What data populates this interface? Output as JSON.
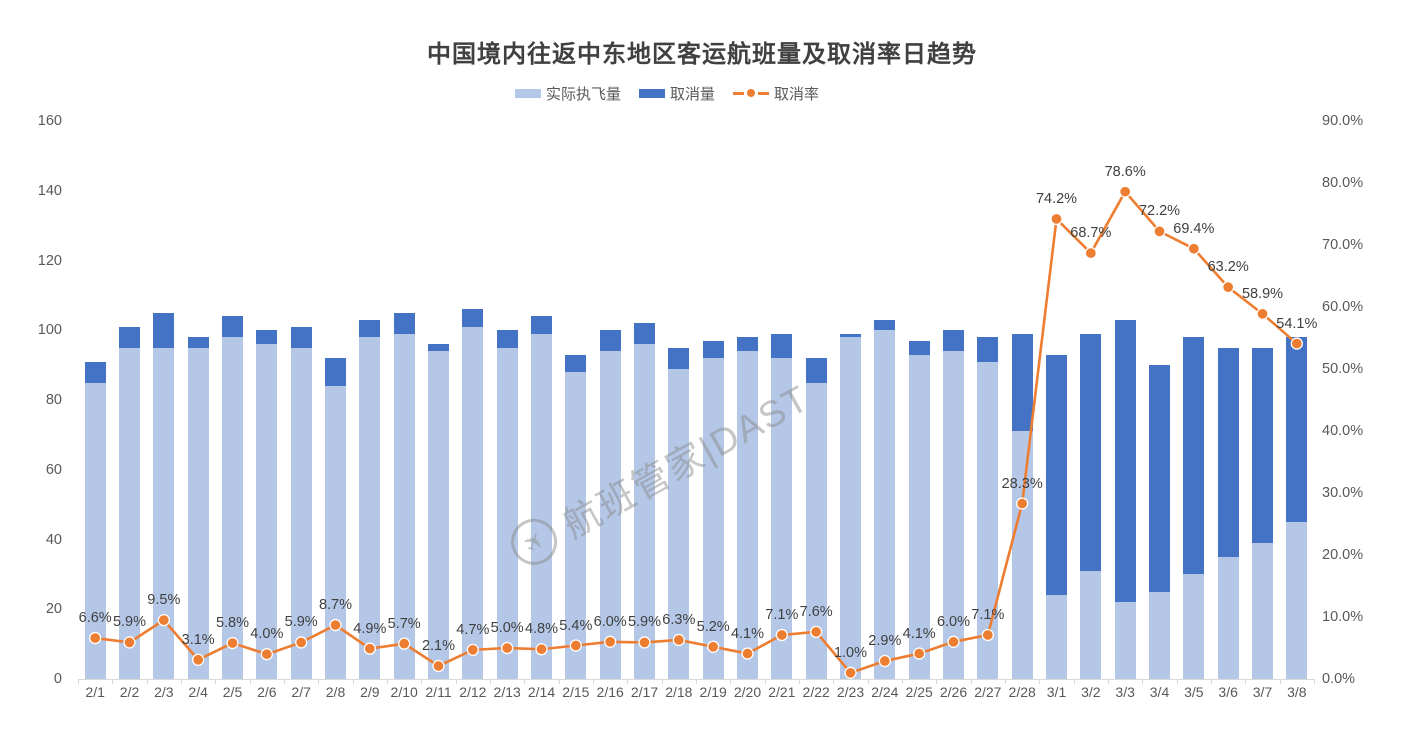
{
  "title": "中国境内往返中东地区客运航班量及取消率日趋势",
  "legend": {
    "items": [
      {
        "label": "实际执飞量",
        "color": "#b4c7e7",
        "type": "bar"
      },
      {
        "label": "取消量",
        "color": "#4472c4",
        "type": "bar"
      },
      {
        "label": "取消率",
        "color": "#ed7d31",
        "type": "line-marker"
      }
    ]
  },
  "watermark": {
    "icon": "flight-logo-icon",
    "text": "航班管家|DAST"
  },
  "colors": {
    "actual_bar": "#b4c7e7",
    "cancel_bar": "#4472c4",
    "rate_line": "#ed7d31",
    "marker_border": "#ffffff",
    "axis_text": "#595959",
    "data_label_text": "#404040",
    "axis_line": "#d9d9d9",
    "title_text": "#404040",
    "watermark_text": "#8a8a8a"
  },
  "chart_data": {
    "type": "combo-stacked-bar-line",
    "title": "中国境内往返中东地区客运航班量及取消率日趋势",
    "grid": "off",
    "legend_position": "top",
    "categories": [
      "2/1",
      "2/2",
      "2/3",
      "2/4",
      "2/5",
      "2/6",
      "2/7",
      "2/8",
      "2/9",
      "2/10",
      "2/11",
      "2/12",
      "2/13",
      "2/14",
      "2/15",
      "2/16",
      "2/17",
      "2/18",
      "2/19",
      "2/20",
      "2/21",
      "2/22",
      "2/23",
      "2/24",
      "2/25",
      "2/26",
      "2/27",
      "2/28",
      "3/1",
      "3/2",
      "3/3",
      "3/4",
      "3/5",
      "3/6",
      "3/7",
      "3/8"
    ],
    "series": [
      {
        "name": "实际执飞量",
        "type": "bar",
        "stacked": true,
        "color": "#b4c7e7",
        "yaxis": "left",
        "values": [
          85,
          95,
          95,
          95,
          98,
          96,
          95,
          84,
          98,
          99,
          94,
          101,
          95,
          99,
          88,
          94,
          96,
          89,
          92,
          94,
          92,
          85,
          98,
          100,
          93,
          94,
          91,
          71,
          24,
          31,
          22,
          25,
          30,
          35,
          39,
          45
        ]
      },
      {
        "name": "取消量",
        "type": "bar",
        "stacked": true,
        "color": "#4472c4",
        "yaxis": "left",
        "values": [
          6,
          6,
          10,
          3,
          6,
          4,
          6,
          8,
          5,
          6,
          2,
          5,
          5,
          5,
          5,
          6,
          6,
          6,
          5,
          4,
          7,
          7,
          1,
          3,
          4,
          6,
          7,
          28,
          69,
          68,
          81,
          65,
          68,
          60,
          56,
          53
        ]
      },
      {
        "name": "取消率",
        "type": "line",
        "marker": "circle",
        "color": "#ed7d31",
        "yaxis": "right",
        "values_percent": [
          6.6,
          5.9,
          9.5,
          3.1,
          5.8,
          4.0,
          5.9,
          8.7,
          4.9,
          5.7,
          2.1,
          4.7,
          5.0,
          4.8,
          5.4,
          6.0,
          5.9,
          6.3,
          5.2,
          4.1,
          7.1,
          7.6,
          1.0,
          2.9,
          4.1,
          6.0,
          7.1,
          28.3,
          74.2,
          68.7,
          78.6,
          72.2,
          69.4,
          63.2,
          58.9,
          54.1
        ],
        "labels": [
          "6.6%",
          "5.9%",
          "9.5%",
          "3.1%",
          "5.8%",
          "4.0%",
          "5.9%",
          "8.7%",
          "4.9%",
          "5.7%",
          "2.1%",
          "4.7%",
          "5.0%",
          "4.8%",
          "5.4%",
          "6.0%",
          "5.9%",
          "6.3%",
          "5.2%",
          "4.1%",
          "7.1%",
          "7.6%",
          "1.0%",
          "2.9%",
          "4.1%",
          "6.0%",
          "7.1%",
          "28.3%",
          "74.2%",
          "68.7%",
          "78.6%",
          "72.2%",
          "69.4%",
          "63.2%",
          "58.9%",
          "54.1%"
        ]
      }
    ],
    "left_axis": {
      "min": 0,
      "max": 160,
      "step": 20,
      "tick_labels": [
        "0",
        "20",
        "40",
        "60",
        "80",
        "100",
        "120",
        "140",
        "160"
      ]
    },
    "right_axis": {
      "min": 0,
      "max": 90,
      "step": 10,
      "tick_labels": [
        "0.0%",
        "10.0%",
        "20.0%",
        "30.0%",
        "40.0%",
        "50.0%",
        "60.0%",
        "70.0%",
        "80.0%",
        "90.0%"
      ]
    }
  }
}
